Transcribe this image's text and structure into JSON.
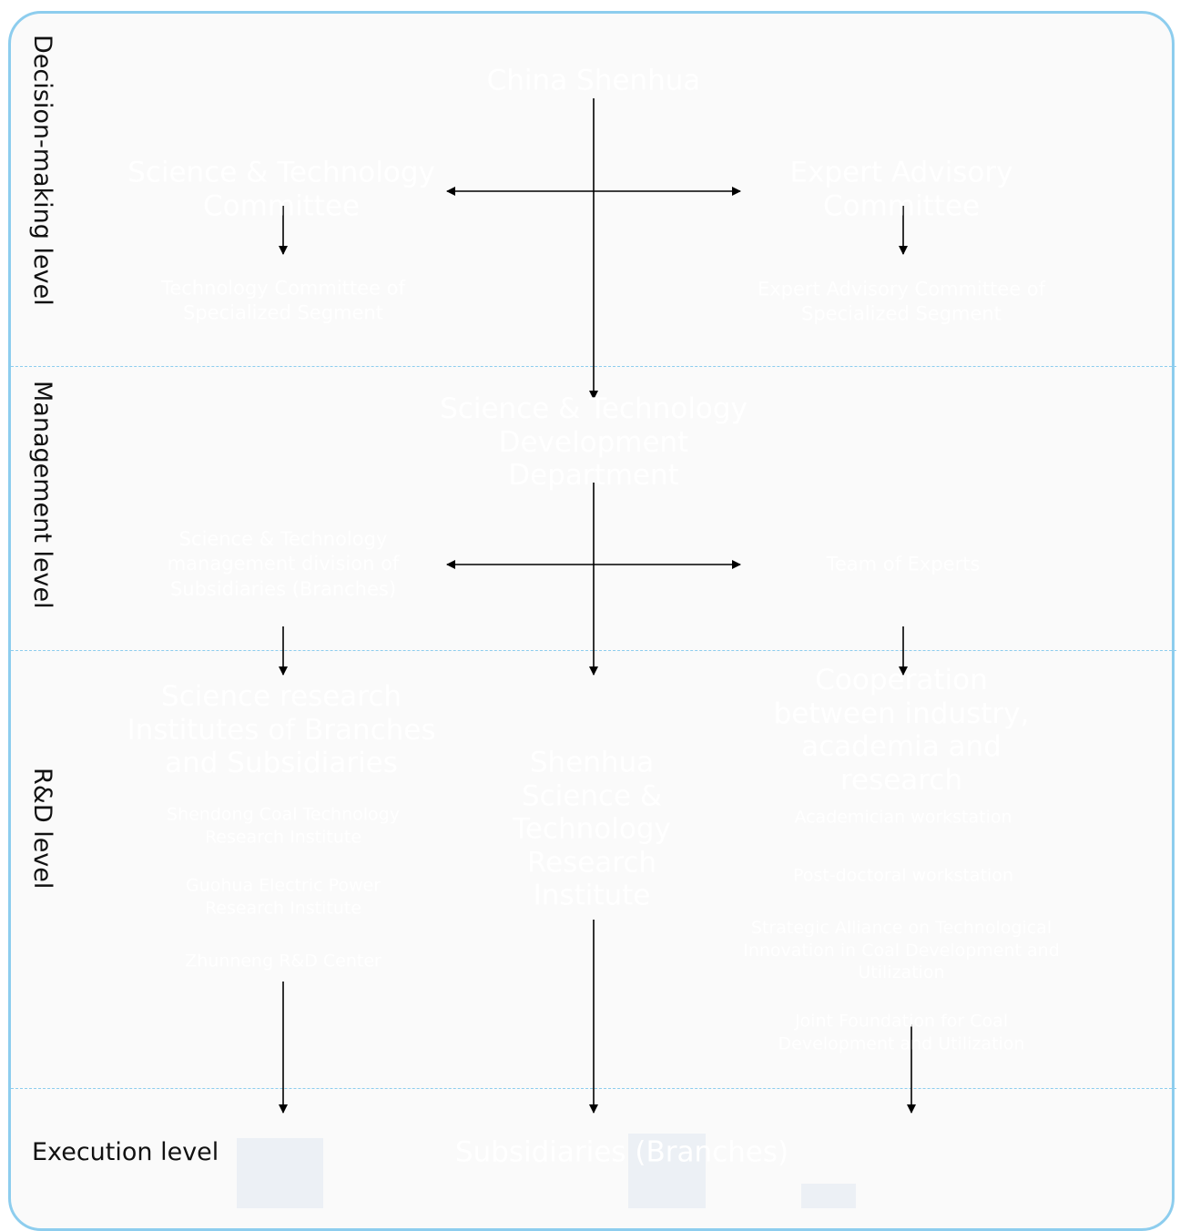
{
  "levels": {
    "decision": "Decision-making level",
    "management": "Management level",
    "rnd": "R&D level",
    "execution": "Execution level"
  },
  "nodes": {
    "china_shenhua": "China Shenhua",
    "st_committee": "Science & Technology Committee",
    "expert_committee": "Expert Advisory Committee",
    "tech_committee_segment": "Technology Committee of Specialized Segment",
    "expert_committee_segment": "Expert Advisory Committee of Specialized Segment",
    "st_dev_department": "Science & Technology Development Department",
    "st_mgmt_division": "Science & Technology management division of Subsidiaries (Branches)",
    "team_experts": "Team of Experts",
    "research_institutes": "Science research Institutes of Branches and Subsidiaries",
    "shendong_institute": "Shendong Coal Technology Research Institute",
    "guohua_institute": "Guohua Electric Power Research Institute",
    "zhunneng_center": "Zhunneng R&D Center",
    "shenhua_st_institute": "Shenhua Science & Technology Research Institute",
    "cooperation": "Cooperation between industry, academia and research",
    "academician_workstation": "Academician workstation",
    "postdoctoral_workstation": "Post-doctoral workstation",
    "strategic_alliance": "Strategic Alliance on Technological Innovation in Coal Development and Utilization",
    "joint_foundation": "Joint Foundation for Coal Development and Utilization",
    "subsidiaries": "Subsidiaries (Branches)"
  },
  "colors": {
    "frame": "#8dcdee",
    "background": "#fafafa",
    "node_text": "#ffffff",
    "level_text": "#111111",
    "arrow": "#000000"
  }
}
